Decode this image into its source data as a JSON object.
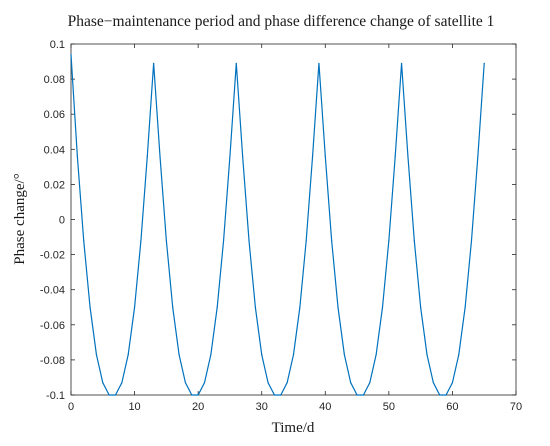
{
  "chart_data": {
    "type": "line",
    "title": "Phase−maintenance period and phase difference change of satellite 1",
    "xlabel": "Time/d",
    "ylabel": "Phase change/°",
    "xlim": [
      0,
      70
    ],
    "ylim": [
      -0.1,
      0.1
    ],
    "xticks": [
      "0",
      "10",
      "20",
      "30",
      "40",
      "50",
      "60",
      "70"
    ],
    "yticks": [
      "0.1",
      "0.08",
      "0.06",
      "0.04",
      "0.02",
      "0",
      "-0.02",
      "-0.04",
      "-0.06",
      "-0.08",
      "-0.1"
    ],
    "grid": false,
    "series_color": "#0072BD",
    "x": [
      0,
      1,
      2,
      3,
      4,
      5,
      6,
      6.5,
      7,
      8,
      9,
      10,
      11,
      12,
      13,
      14,
      15,
      16,
      17,
      18,
      19,
      19.5,
      20,
      21,
      22,
      23,
      24,
      25,
      26,
      27,
      28,
      29,
      30,
      31,
      32,
      32.5,
      33,
      34,
      35,
      36,
      37,
      38,
      39,
      40,
      41,
      42,
      43,
      44,
      45,
      45.5,
      46,
      47,
      48,
      49,
      50,
      51,
      52,
      53,
      54,
      55,
      56,
      57,
      58,
      58.5,
      59,
      60,
      61,
      62,
      63,
      64,
      65
    ],
    "y": [
      0.094,
      0.036,
      -0.012,
      -0.05,
      -0.077,
      -0.093,
      -0.1,
      -0.1,
      -0.1,
      -0.093,
      -0.077,
      -0.05,
      -0.012,
      0.036,
      0.089,
      0.036,
      -0.012,
      -0.05,
      -0.077,
      -0.093,
      -0.1,
      -0.1,
      -0.1,
      -0.093,
      -0.077,
      -0.05,
      -0.012,
      0.036,
      0.089,
      0.036,
      -0.012,
      -0.05,
      -0.077,
      -0.093,
      -0.1,
      -0.1,
      -0.1,
      -0.093,
      -0.077,
      -0.05,
      -0.012,
      0.036,
      0.089,
      0.036,
      -0.012,
      -0.05,
      -0.077,
      -0.093,
      -0.1,
      -0.1,
      -0.1,
      -0.093,
      -0.077,
      -0.05,
      -0.012,
      0.036,
      0.089,
      0.036,
      -0.012,
      -0.05,
      -0.077,
      -0.093,
      -0.1,
      -0.1,
      -0.1,
      -0.093,
      -0.077,
      -0.05,
      -0.012,
      0.036,
      0.089
    ]
  }
}
